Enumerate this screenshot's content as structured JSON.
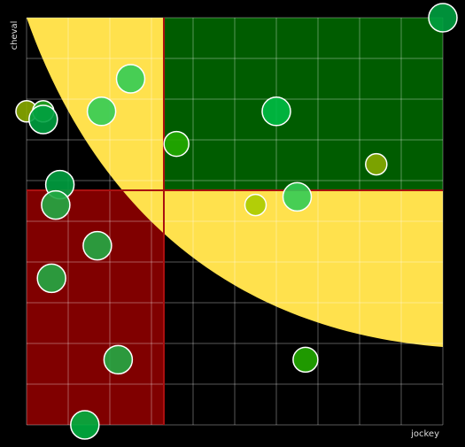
{
  "chart_data": {
    "type": "scatter",
    "x_label": "jockey",
    "y_label": "cheval",
    "xlim": [
      0,
      100
    ],
    "ylim": [
      0,
      100
    ],
    "xticks": [
      0,
      10,
      20,
      30,
      40,
      50,
      60,
      70,
      80,
      90,
      100
    ],
    "yticks": [
      0,
      10,
      20,
      30,
      40,
      50,
      60,
      70,
      80,
      90,
      100
    ],
    "grid": true,
    "x": [
      100,
      25,
      0,
      4,
      4,
      18,
      60,
      36,
      84,
      8,
      65,
      55,
      7,
      17,
      6,
      22,
      67,
      14
    ],
    "values": [
      100,
      85,
      77,
      77,
      75,
      77,
      77,
      69,
      64,
      59,
      56,
      54,
      54,
      44,
      36,
      16,
      16,
      0
    ],
    "sizes": [
      16,
      16,
      12,
      12,
      16,
      16,
      16,
      14,
      12,
      16,
      16,
      12,
      16,
      16,
      16,
      16,
      14,
      16
    ],
    "colors": [
      "#00a040",
      "#33cc55",
      "#88aa00",
      "#22aa22",
      "#00a040",
      "#33cc55",
      "#00bb44",
      "#22aa00",
      "#88aa00",
      "#00a040",
      "#33cc55",
      "#aacc00",
      "#22aa44",
      "#22aa44",
      "#22aa44",
      "#22aa44",
      "#22aa00",
      "#00b040"
    ]
  }
}
